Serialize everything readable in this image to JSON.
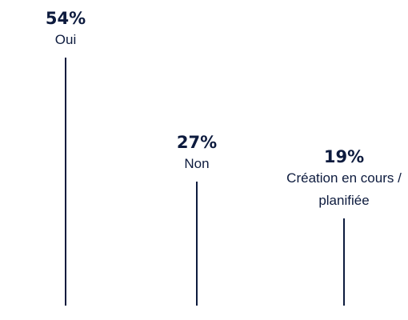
{
  "chart_data": {
    "type": "lollipop",
    "categories": [
      "Oui",
      "Non",
      "Création en cours / planifiée"
    ],
    "values": [
      54,
      27,
      19
    ],
    "value_labels": [
      "54%",
      "27%",
      "19%"
    ],
    "color": "#0d1b3e"
  }
}
